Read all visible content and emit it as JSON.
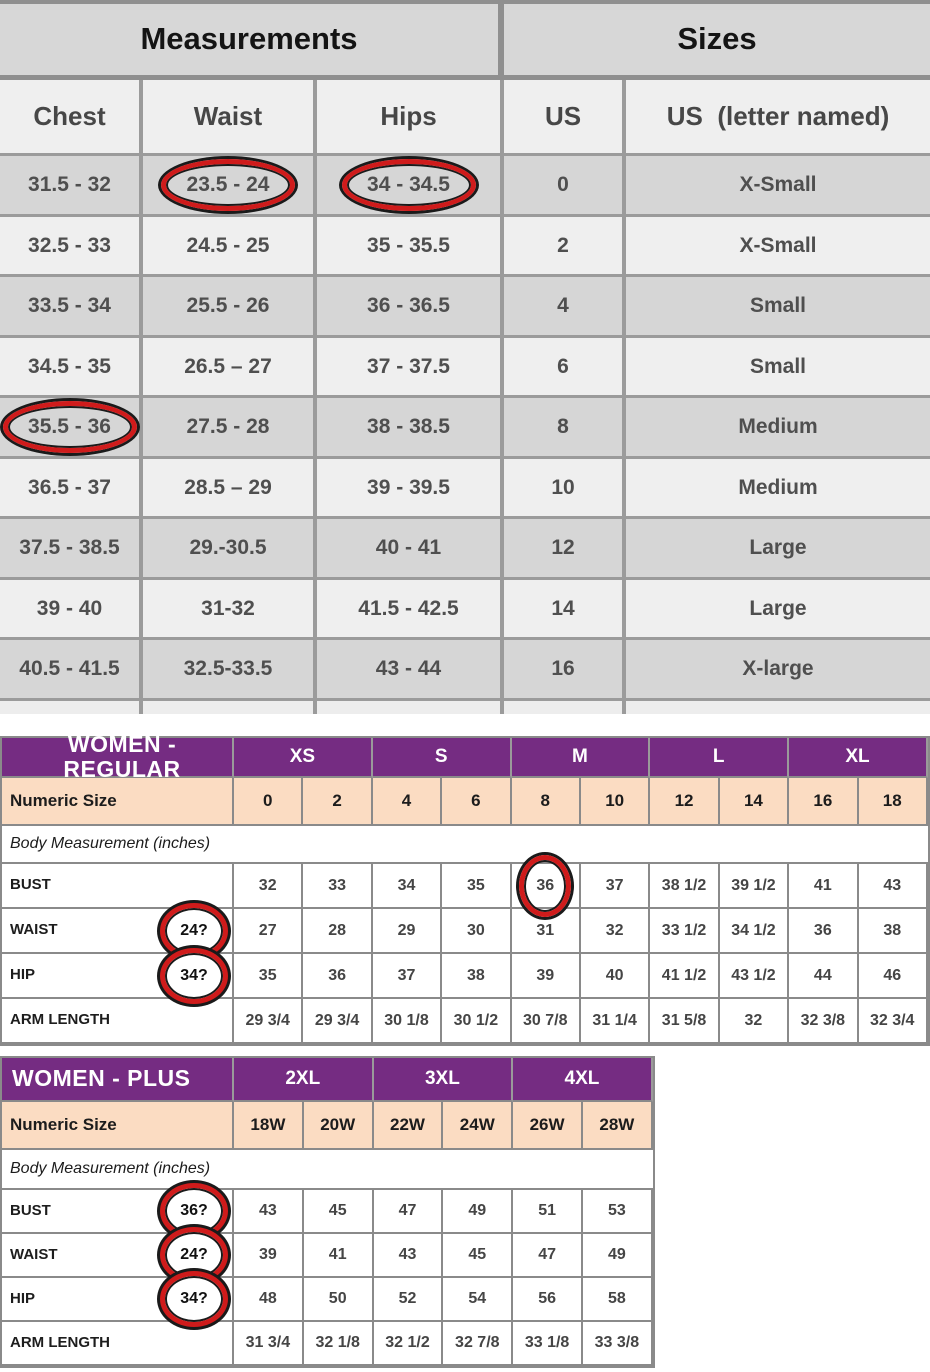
{
  "colors": {
    "purple_header": "#752c82",
    "peach_row": "#fbdcc2",
    "annotation_red": "#cf1b1b",
    "row_dark": "#d6d6d6",
    "row_light": "#efefef",
    "border_gray": "#9b9b9b"
  },
  "conversion_table": {
    "group_headers": [
      {
        "label": "Measurements"
      },
      {
        "label": "Sizes"
      }
    ],
    "columns": [
      "Chest",
      "Waist",
      "Hips",
      "US",
      "US  (letter named)"
    ],
    "rows": [
      {
        "chest": "31.5 - 32",
        "waist": "23.5 - 24",
        "hips": "34 - 34.5",
        "us": "0",
        "letter": "X-Small",
        "circled": [
          "waist",
          "hips"
        ]
      },
      {
        "chest": "32.5 - 33",
        "waist": "24.5 - 25",
        "hips": "35 - 35.5",
        "us": "2",
        "letter": "X-Small",
        "circled": []
      },
      {
        "chest": "33.5 - 34",
        "waist": "25.5 - 26",
        "hips": "36 - 36.5",
        "us": "4",
        "letter": "Small",
        "circled": []
      },
      {
        "chest": "34.5 - 35",
        "waist": "26.5 – 27",
        "hips": "37 - 37.5",
        "us": "6",
        "letter": "Small",
        "circled": []
      },
      {
        "chest": "35.5 - 36",
        "waist": "27.5 - 28",
        "hips": "38 - 38.5",
        "us": "8",
        "letter": "Medium",
        "circled": [
          "chest"
        ]
      },
      {
        "chest": "36.5 - 37",
        "waist": "28.5 – 29",
        "hips": "39 - 39.5",
        "us": "10",
        "letter": "Medium",
        "circled": []
      },
      {
        "chest": "37.5 - 38.5",
        "waist": "29.-30.5",
        "hips": "40 - 41",
        "us": "12",
        "letter": "Large",
        "circled": []
      },
      {
        "chest": "39 - 40",
        "waist": "31-32",
        "hips": "41.5 - 42.5",
        "us": "14",
        "letter": "Large",
        "circled": []
      },
      {
        "chest": "40.5 - 41.5",
        "waist": "32.5-33.5",
        "hips": "43 - 44",
        "us": "16",
        "letter": "X-large",
        "circled": []
      }
    ]
  },
  "women_regular": {
    "title": "WOMEN - REGULAR",
    "size_groups": [
      "XS",
      "S",
      "M",
      "L",
      "XL"
    ],
    "numeric_size_label": "Numeric Size",
    "numeric_sizes": [
      "0",
      "2",
      "4",
      "6",
      "8",
      "10",
      "12",
      "14",
      "16",
      "18"
    ],
    "section_label": "Body Measurement (inches)",
    "rows": [
      {
        "label": "BUST",
        "annotation": null,
        "circled_index": 4,
        "values": [
          "32",
          "33",
          "34",
          "35",
          "36",
          "37",
          "38 1/2",
          "39 1/2",
          "41",
          "43"
        ]
      },
      {
        "label": "WAIST",
        "annotation": "24?",
        "circled_index": null,
        "values": [
          "27",
          "28",
          "29",
          "30",
          "31",
          "32",
          "33 1/2",
          "34 1/2",
          "36",
          "38"
        ]
      },
      {
        "label": "HIP",
        "annotation": "34?",
        "circled_index": null,
        "values": [
          "35",
          "36",
          "37",
          "38",
          "39",
          "40",
          "41 1/2",
          "43 1/2",
          "44",
          "46"
        ]
      },
      {
        "label": "ARM LENGTH",
        "annotation": null,
        "circled_index": null,
        "values": [
          "29 3/4",
          "29 3/4",
          "30 1/8",
          "30 1/2",
          "30 7/8",
          "31 1/4",
          "31 5/8",
          "32",
          "32 3/8",
          "32 3/4"
        ]
      }
    ]
  },
  "women_plus": {
    "title": "WOMEN - PLUS",
    "size_groups": [
      "2XL",
      "3XL",
      "4XL"
    ],
    "numeric_size_label": "Numeric Size",
    "numeric_sizes": [
      "18W",
      "20W",
      "22W",
      "24W",
      "26W",
      "28W"
    ],
    "section_label": "Body Measurement (inches)",
    "rows": [
      {
        "label": "BUST",
        "annotation": "36?",
        "circled_index": null,
        "values": [
          "43",
          "45",
          "47",
          "49",
          "51",
          "53"
        ]
      },
      {
        "label": "WAIST",
        "annotation": "24?",
        "circled_index": null,
        "values": [
          "39",
          "41",
          "43",
          "45",
          "47",
          "49"
        ]
      },
      {
        "label": "HIP",
        "annotation": "34?",
        "circled_index": null,
        "values": [
          "48",
          "50",
          "52",
          "54",
          "56",
          "58"
        ]
      },
      {
        "label": "ARM LENGTH",
        "annotation": null,
        "circled_index": null,
        "values": [
          "31 3/4",
          "32 1/8",
          "32 1/2",
          "32 7/8",
          "33 1/8",
          "33 3/8"
        ]
      }
    ]
  }
}
